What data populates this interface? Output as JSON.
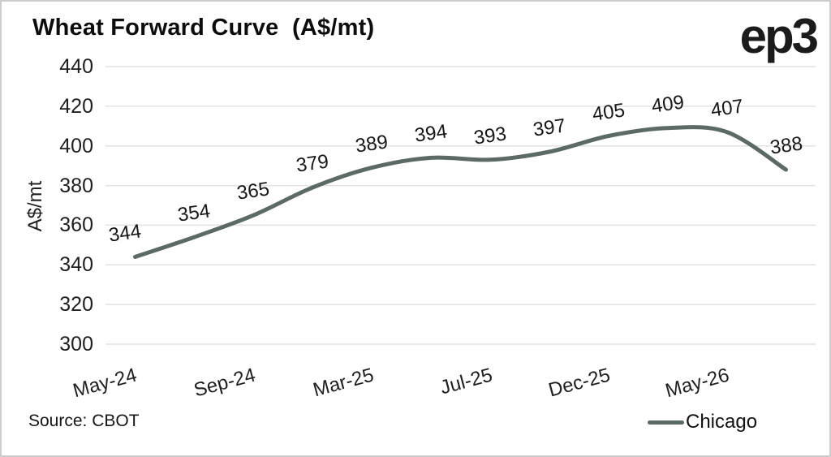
{
  "header": {
    "title": "Wheat Forward Curve  (A$/mt)",
    "logo_text": "ep3"
  },
  "footer": {
    "source": "Source: CBOT"
  },
  "legend": {
    "label": "Chicago"
  },
  "colors": {
    "line": "#5b6a66",
    "grid": "#e2e2e2",
    "text": "#1f1f1f",
    "border": "#cdcdcd"
  },
  "chart_data": {
    "type": "line",
    "title": "Wheat Forward Curve (A$/mt)",
    "ylabel": "A$/mt",
    "series": [
      {
        "name": "Chicago",
        "values": [
          344,
          354,
          365,
          379,
          389,
          394,
          393,
          397,
          405,
          409,
          407,
          388
        ]
      }
    ],
    "data_labels": [
      "344",
      "354",
      "365",
      "379",
      "389",
      "394",
      "393",
      "397",
      "405",
      "409",
      "407",
      "388"
    ],
    "x_tick_labels": [
      "May-24",
      "Sep-24",
      "Mar-25",
      "Jul-25",
      "Dec-25",
      "May-26"
    ],
    "x_tick_every": 2,
    "y_tick_labels": [
      "300",
      "320",
      "340",
      "360",
      "380",
      "400",
      "420",
      "440"
    ],
    "ylim": [
      300,
      440
    ],
    "ytick_step": 20,
    "grid": "horizontal",
    "legend_position": "bottom-right",
    "source": "CBOT"
  }
}
